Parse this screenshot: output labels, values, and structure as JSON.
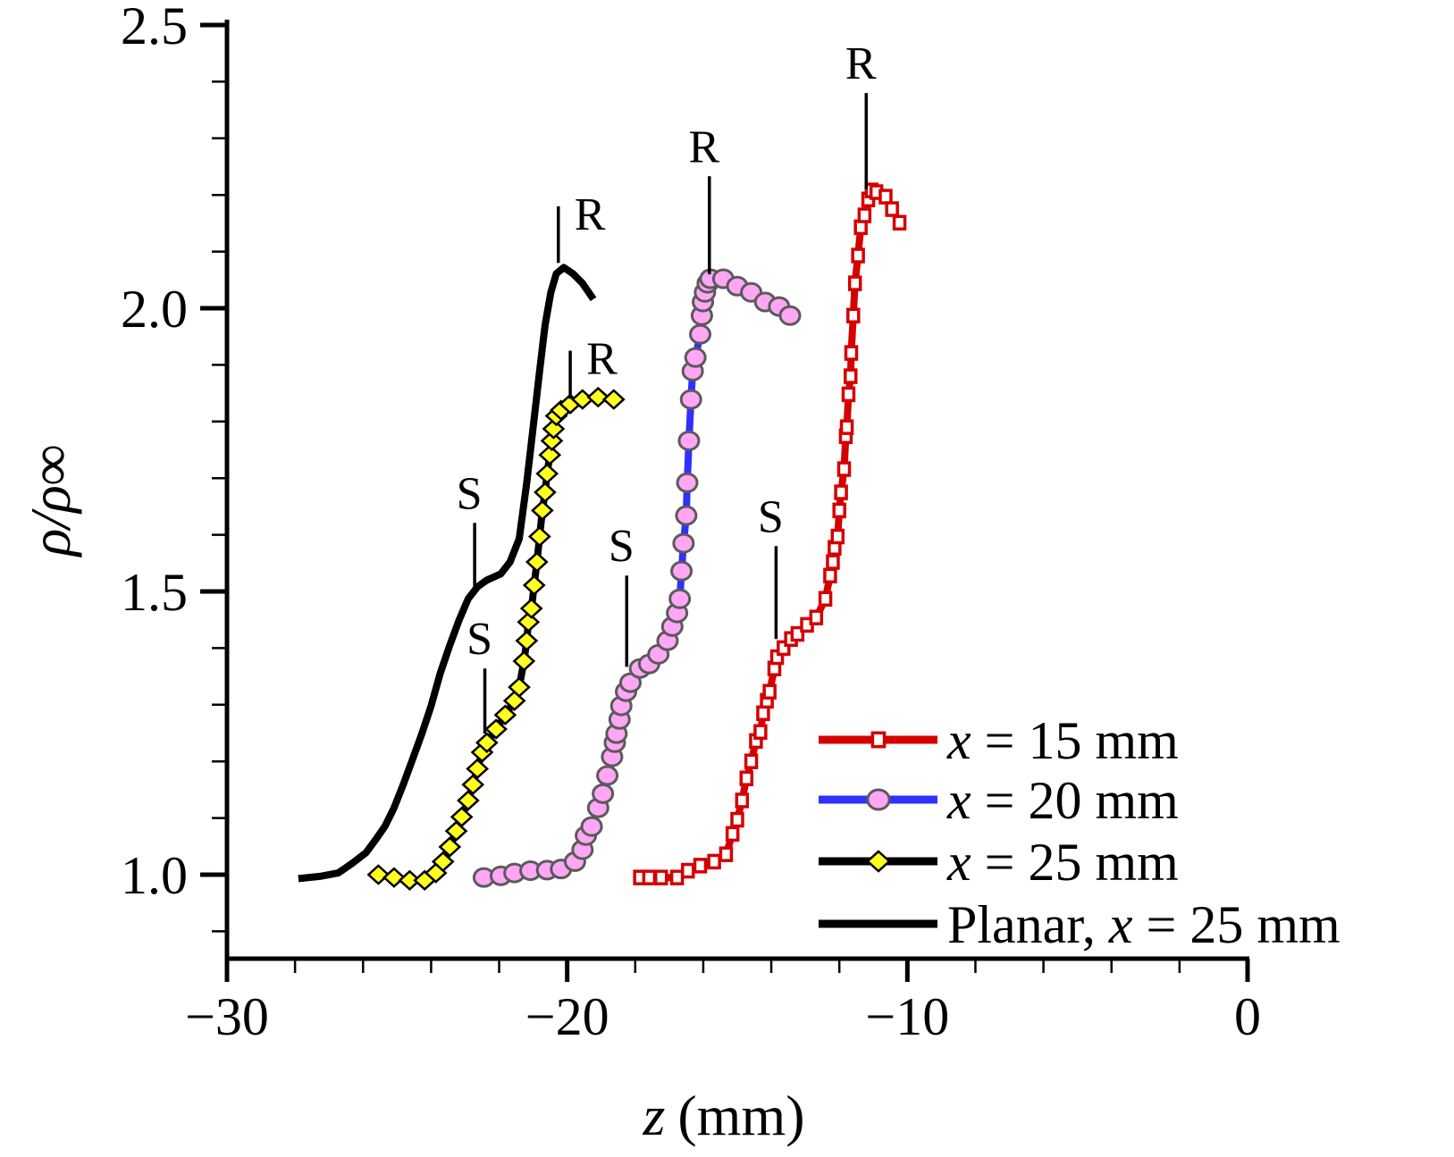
{
  "chart_data": {
    "type": "line",
    "title": "",
    "xlabel": "z (mm)",
    "xlabel_var": "z",
    "xlabel_unit": "(mm)",
    "ylabel": "ρ/ρ∞",
    "xlim": [
      -30,
      0
    ],
    "ylim": [
      0.85,
      2.5
    ],
    "x_ticks": [
      -30,
      -20,
      -10,
      0
    ],
    "x_tick_labels": [
      "−30",
      "−20",
      "−10",
      "0"
    ],
    "x_minor_step": 2,
    "y_ticks": [
      1.0,
      1.5,
      2.0,
      2.5
    ],
    "y_tick_labels": [
      "1.0",
      "1.5",
      "2.0",
      "2.5"
    ],
    "y_minor_step": 0.1,
    "grid": false,
    "legend_position": "bottom-right",
    "series": [
      {
        "name": "x = 15 mm",
        "legend_var": "x",
        "legend_rest": " = 15 mm",
        "line_color": "#d40000",
        "marker": "square-open",
        "marker_fill": "#ffffff",
        "marker_stroke": "#d40000",
        "x": [
          -17.86,
          -17.59,
          -17.24,
          -16.77,
          -16.45,
          -16.09,
          -15.68,
          -15.33,
          -15.14,
          -15.0,
          -14.86,
          -14.73,
          -14.59,
          -14.45,
          -14.32,
          -14.24,
          -14.13,
          -14.05,
          -13.91,
          -13.83,
          -13.64,
          -13.42,
          -13.23,
          -12.95,
          -12.68,
          -12.41,
          -12.27,
          -12.19,
          -12.14,
          -12.05,
          -12.0,
          -11.95,
          -11.86,
          -11.81,
          -11.78,
          -11.73,
          -11.67,
          -11.65,
          -11.59,
          -11.54,
          -11.45,
          -11.37,
          -11.26,
          -11.15,
          -11.05,
          -10.91,
          -10.64,
          -10.45,
          -10.23
        ],
        "y": [
          0.995,
          0.995,
          0.995,
          0.995,
          1.007,
          1.016,
          1.023,
          1.036,
          1.072,
          1.097,
          1.131,
          1.17,
          1.2,
          1.236,
          1.252,
          1.285,
          1.307,
          1.323,
          1.364,
          1.384,
          1.4,
          1.416,
          1.425,
          1.441,
          1.454,
          1.487,
          1.528,
          1.552,
          1.577,
          1.597,
          1.643,
          1.675,
          1.716,
          1.774,
          1.79,
          1.848,
          1.88,
          1.921,
          1.987,
          2.044,
          2.093,
          2.143,
          2.164,
          2.192,
          2.208,
          2.205,
          2.197,
          2.175,
          2.151
        ]
      },
      {
        "name": "x = 20 mm",
        "legend_var": "x",
        "legend_rest": " = 20 mm",
        "line_color": "#3030ff",
        "marker": "circle",
        "marker_fill": "#ffa6f5",
        "marker_stroke": "#5a5a5a",
        "x": [
          -22.45,
          -21.95,
          -21.55,
          -21.08,
          -20.59,
          -20.18,
          -19.77,
          -19.55,
          -19.45,
          -19.28,
          -19.09,
          -18.95,
          -18.82,
          -18.68,
          -18.6,
          -18.55,
          -18.46,
          -18.41,
          -18.27,
          -18.14,
          -17.86,
          -17.59,
          -17.32,
          -17.05,
          -16.91,
          -16.77,
          -16.69,
          -16.64,
          -16.58,
          -16.5,
          -16.47,
          -16.42,
          -16.36,
          -16.31,
          -16.23,
          -16.09,
          -16.04,
          -16.01,
          -15.95,
          -15.87,
          -15.79,
          -15.41,
          -15.0,
          -14.59,
          -14.18,
          -13.77,
          -13.45
        ],
        "y": [
          0.995,
          0.998,
          1.003,
          1.007,
          1.008,
          1.01,
          1.023,
          1.044,
          1.069,
          1.085,
          1.118,
          1.143,
          1.175,
          1.208,
          1.233,
          1.249,
          1.274,
          1.298,
          1.323,
          1.339,
          1.364,
          1.372,
          1.389,
          1.413,
          1.438,
          1.462,
          1.487,
          1.536,
          1.585,
          1.634,
          1.692,
          1.766,
          1.839,
          1.889,
          1.913,
          1.954,
          1.987,
          2.011,
          2.028,
          2.044,
          2.052,
          2.052,
          2.039,
          2.028,
          2.011,
          2.003,
          1.987
        ]
      },
      {
        "name": "x = 25 mm",
        "legend_var": "x",
        "legend_rest": " = 25 mm",
        "line_color": "#000000",
        "marker": "diamond",
        "marker_fill": "#ffff20",
        "marker_stroke": "#000000",
        "x": [
          -25.55,
          -25.09,
          -24.63,
          -24.19,
          -23.86,
          -23.65,
          -23.45,
          -23.26,
          -23.1,
          -22.91,
          -22.77,
          -22.64,
          -22.5,
          -22.36,
          -22.09,
          -21.82,
          -21.55,
          -21.41,
          -21.27,
          -21.19,
          -21.14,
          -21.05,
          -20.97,
          -20.89,
          -20.81,
          -20.73,
          -20.65,
          -20.59,
          -20.51,
          -20.45,
          -20.4,
          -20.32,
          -20.18,
          -19.91,
          -19.55,
          -19.09,
          -18.63
        ],
        "y": [
          1.0,
          0.995,
          0.99,
          0.99,
          1.003,
          1.023,
          1.049,
          1.077,
          1.102,
          1.131,
          1.159,
          1.187,
          1.216,
          1.233,
          1.257,
          1.282,
          1.307,
          1.331,
          1.377,
          1.413,
          1.446,
          1.47,
          1.511,
          1.552,
          1.597,
          1.643,
          1.675,
          1.708,
          1.741,
          1.766,
          1.787,
          1.81,
          1.82,
          1.831,
          1.839,
          1.843,
          1.839
        ]
      },
      {
        "name": "Planar, x = 25 mm",
        "legend_pre": "Planar, ",
        "legend_var": "x",
        "legend_rest": " = 25 mm",
        "line_color": "#000000",
        "marker": "none",
        "x": [
          -27.9,
          -27.27,
          -26.73,
          -26.32,
          -25.91,
          -25.64,
          -25.36,
          -25.09,
          -24.82,
          -24.55,
          -24.27,
          -24.0,
          -23.73,
          -23.45,
          -23.18,
          -22.91,
          -22.64,
          -22.36,
          -21.95,
          -21.68,
          -21.41,
          -21.19,
          -21.0,
          -20.81,
          -20.65,
          -20.48,
          -20.32,
          -20.1,
          -19.83,
          -19.55,
          -19.23
        ],
        "y": [
          0.993,
          0.997,
          1.003,
          1.02,
          1.039,
          1.061,
          1.085,
          1.118,
          1.159,
          1.203,
          1.249,
          1.298,
          1.356,
          1.405,
          1.449,
          1.487,
          1.508,
          1.52,
          1.531,
          1.552,
          1.593,
          1.692,
          1.79,
          1.889,
          1.97,
          2.028,
          2.061,
          2.072,
          2.061,
          2.044,
          2.016
        ]
      }
    ],
    "annotations": [
      {
        "text": "R",
        "series": "Planar, x = 25 mm",
        "z": -20.26,
        "y_top": 2.18,
        "y_bottom": 2.08,
        "label_side": "right"
      },
      {
        "text": "R",
        "series": "x = 25 mm",
        "z": -19.91,
        "y_top": 1.925,
        "y_bottom": 1.84,
        "label_side": "right"
      },
      {
        "text": "R",
        "series": "x = 20 mm",
        "z": -15.82,
        "y_top": 2.233,
        "y_bottom": 2.06,
        "label_side": "above"
      },
      {
        "text": "R",
        "series": "x = 15 mm",
        "z": -11.21,
        "y_top": 2.38,
        "y_bottom": 2.21,
        "label_side": "above"
      },
      {
        "text": "S",
        "series": "Planar, x = 25 mm",
        "z": -22.72,
        "y_top": 1.621,
        "y_bottom": 1.495,
        "label_side": "above"
      },
      {
        "text": "S",
        "series": "x = 25 mm",
        "z": -22.42,
        "y_top": 1.364,
        "y_bottom": 1.249,
        "label_side": "above"
      },
      {
        "text": "S",
        "series": "x = 20 mm",
        "z": -18.25,
        "y_top": 1.528,
        "y_bottom": 1.367,
        "label_side": "above"
      },
      {
        "text": "S",
        "series": "x = 15 mm",
        "z": -13.86,
        "y_top": 1.58,
        "y_bottom": 1.416,
        "label_side": "above"
      }
    ]
  }
}
